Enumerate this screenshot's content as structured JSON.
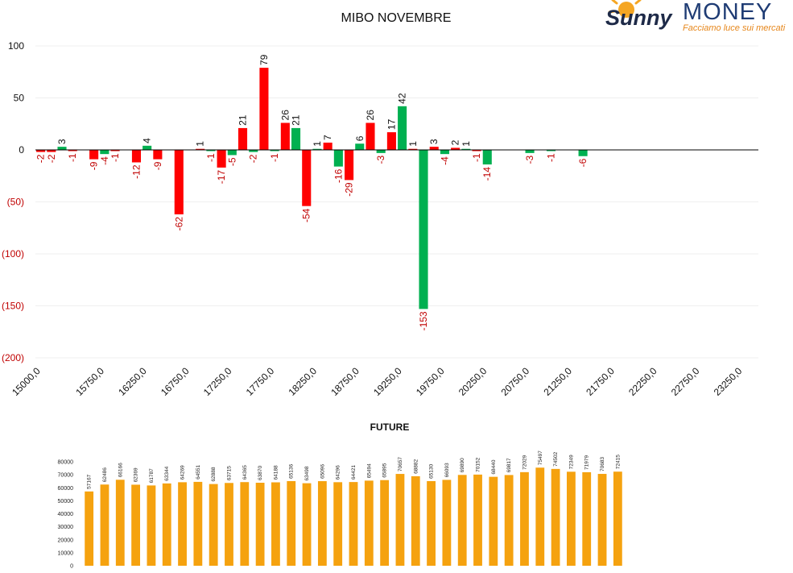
{
  "logo": {
    "brand_left": "Sunny",
    "brand_right": "MONEY",
    "tagline": "Facciamo luce sui mercati",
    "sun_color": "#f5a623"
  },
  "colors": {
    "positive": "#00b050",
    "negative": "#ff0000",
    "negative_label": "#c00000",
    "future_bar": "#f5a20f"
  },
  "chart_data": [
    {
      "type": "bar",
      "title": "MIBO NOVEMBRE",
      "xlabel": "",
      "ylabel": "",
      "ylim": [
        -200,
        100
      ],
      "yticks": [
        100,
        50,
        0,
        -50,
        -100,
        -150,
        -200
      ],
      "ytick_labels": [
        "100",
        "50",
        "0",
        "(50)",
        "(100)",
        "(150)",
        "(200)"
      ],
      "grid": true,
      "legend": "none",
      "x_tick_labels": [
        "15000,0",
        "15750,0",
        "16250,0",
        "16750,0",
        "17250,0",
        "17750,0",
        "18250,0",
        "18750,0",
        "19250,0",
        "19750,0",
        "20250,0",
        "20750,0",
        "21250,0",
        "21750,0",
        "22250,0",
        "22750,0",
        "23250,0"
      ],
      "strike_start": 15000,
      "strike_step": 125,
      "values": [
        -2,
        -2,
        3,
        -1,
        null,
        -9,
        -4,
        -1,
        null,
        -12,
        4,
        -9,
        null,
        -62,
        null,
        1,
        -1,
        -17,
        -5,
        21,
        -2,
        79,
        -1,
        26,
        21,
        -54,
        1,
        7,
        -16,
        -29,
        6,
        26,
        -3,
        17,
        42,
        1,
        -153,
        3,
        -4,
        2,
        1,
        -1,
        -14,
        null,
        null,
        null,
        -3,
        null,
        -1,
        null,
        null,
        -6,
        null,
        null,
        null,
        null,
        null,
        null,
        null,
        null,
        null,
        null,
        null,
        null,
        null,
        null,
        null,
        null
      ],
      "colors": [
        "neg",
        "neg",
        "pos",
        "neg",
        null,
        "neg",
        "pos",
        "neg",
        null,
        "neg",
        "pos",
        "neg",
        null,
        "neg",
        null,
        "neg",
        "pos",
        "neg",
        "pos",
        "neg",
        "pos",
        "neg",
        "pos",
        "neg",
        "pos",
        "neg",
        "pos",
        "neg",
        "pos",
        "neg",
        "pos",
        "neg",
        "pos",
        "neg",
        "pos",
        "neg",
        "pos",
        "neg",
        "pos",
        "neg",
        "pos",
        "neg",
        "pos",
        null,
        null,
        null,
        "pos",
        null,
        "pos",
        null,
        null,
        "pos",
        null,
        null,
        null,
        null,
        null,
        null,
        null,
        null,
        null,
        null,
        null,
        null,
        null,
        null,
        null,
        null
      ]
    },
    {
      "type": "bar",
      "title": "FUTURE",
      "xlabel": "",
      "ylabel": "",
      "ylim": [
        0,
        80000
      ],
      "yticks": [
        0,
        10000,
        20000,
        30000,
        40000,
        50000,
        60000,
        70000,
        80000
      ],
      "grid": false,
      "legend": "none",
      "values": [
        57167,
        62486,
        66166,
        62369,
        61787,
        63344,
        64269,
        64551,
        62888,
        63715,
        64365,
        63870,
        64188,
        65136,
        63498,
        65096,
        64296,
        64421,
        65494,
        65895,
        70657,
        68882,
        65130,
        66093,
        69890,
        70152,
        68440,
        69817,
        72029,
        75497,
        74502,
        72349,
        71979,
        70683,
        72415
      ]
    }
  ]
}
